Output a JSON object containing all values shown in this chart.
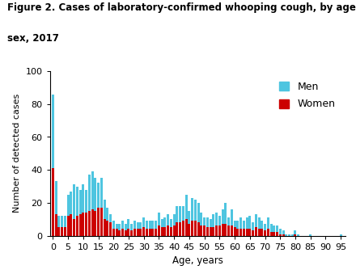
{
  "title_line1": "Figure 2. Cases of laboratory-confirmed whooping cough, by age and",
  "title_line2": "sex, 2017",
  "xlabel": "Age, years",
  "ylabel": "Number of detected cases",
  "men_color": "#4EC5E0",
  "women_color": "#CC0000",
  "ylim": [
    0,
    100
  ],
  "yticks": [
    0,
    20,
    40,
    60,
    80,
    100
  ],
  "xtick_positions": [
    0,
    5,
    10,
    15,
    20,
    25,
    30,
    35,
    40,
    45,
    50,
    55,
    60,
    65,
    70,
    75,
    80,
    85,
    90,
    95
  ],
  "ages": [
    0,
    1,
    2,
    3,
    4,
    5,
    6,
    7,
    8,
    9,
    10,
    11,
    12,
    13,
    14,
    15,
    16,
    17,
    18,
    19,
    20,
    21,
    22,
    23,
    24,
    25,
    26,
    27,
    28,
    29,
    30,
    31,
    32,
    33,
    34,
    35,
    36,
    37,
    38,
    39,
    40,
    41,
    42,
    43,
    44,
    45,
    46,
    47,
    48,
    49,
    50,
    51,
    52,
    53,
    54,
    55,
    56,
    57,
    58,
    59,
    60,
    61,
    62,
    63,
    64,
    65,
    66,
    67,
    68,
    69,
    70,
    71,
    72,
    73,
    74,
    75,
    76,
    77,
    78,
    79,
    80,
    81,
    82,
    83,
    84,
    85,
    86,
    87,
    88,
    89,
    90,
    91,
    92,
    93,
    94,
    95
  ],
  "men": [
    45,
    20,
    7,
    7,
    7,
    13,
    14,
    21,
    18,
    15,
    17,
    14,
    22,
    23,
    20,
    15,
    18,
    12,
    8,
    5,
    5,
    3,
    4,
    5,
    4,
    6,
    4,
    5,
    4,
    4,
    6,
    5,
    5,
    5,
    5,
    8,
    5,
    6,
    7,
    5,
    7,
    10,
    10,
    9,
    15,
    8,
    14,
    13,
    12,
    8,
    5,
    6,
    5,
    8,
    8,
    6,
    9,
    13,
    5,
    10,
    4,
    5,
    7,
    5,
    7,
    8,
    5,
    8,
    7,
    5,
    4,
    7,
    5,
    4,
    4,
    3,
    2,
    1,
    1,
    1,
    2,
    1,
    0,
    0,
    0,
    1,
    0,
    0,
    0,
    0,
    0,
    0,
    0,
    0,
    0,
    1
  ],
  "women": [
    41,
    13,
    5,
    5,
    5,
    12,
    13,
    10,
    12,
    13,
    14,
    14,
    15,
    16,
    15,
    17,
    17,
    10,
    9,
    8,
    4,
    4,
    3,
    4,
    3,
    4,
    3,
    4,
    4,
    4,
    5,
    4,
    4,
    4,
    4,
    6,
    5,
    5,
    6,
    5,
    6,
    8,
    8,
    9,
    10,
    7,
    9,
    9,
    8,
    6,
    6,
    5,
    5,
    5,
    6,
    6,
    7,
    7,
    6,
    6,
    5,
    4,
    4,
    4,
    4,
    4,
    3,
    5,
    4,
    4,
    3,
    4,
    2,
    2,
    2,
    1,
    1,
    0,
    0,
    0,
    1,
    0,
    0,
    0,
    0,
    0,
    0,
    0,
    0,
    0,
    0,
    0,
    0,
    0,
    0,
    0
  ],
  "title_fontsize": 8.5,
  "axis_fontsize": 8.5,
  "tick_fontsize": 8,
  "legend_fontsize": 9
}
